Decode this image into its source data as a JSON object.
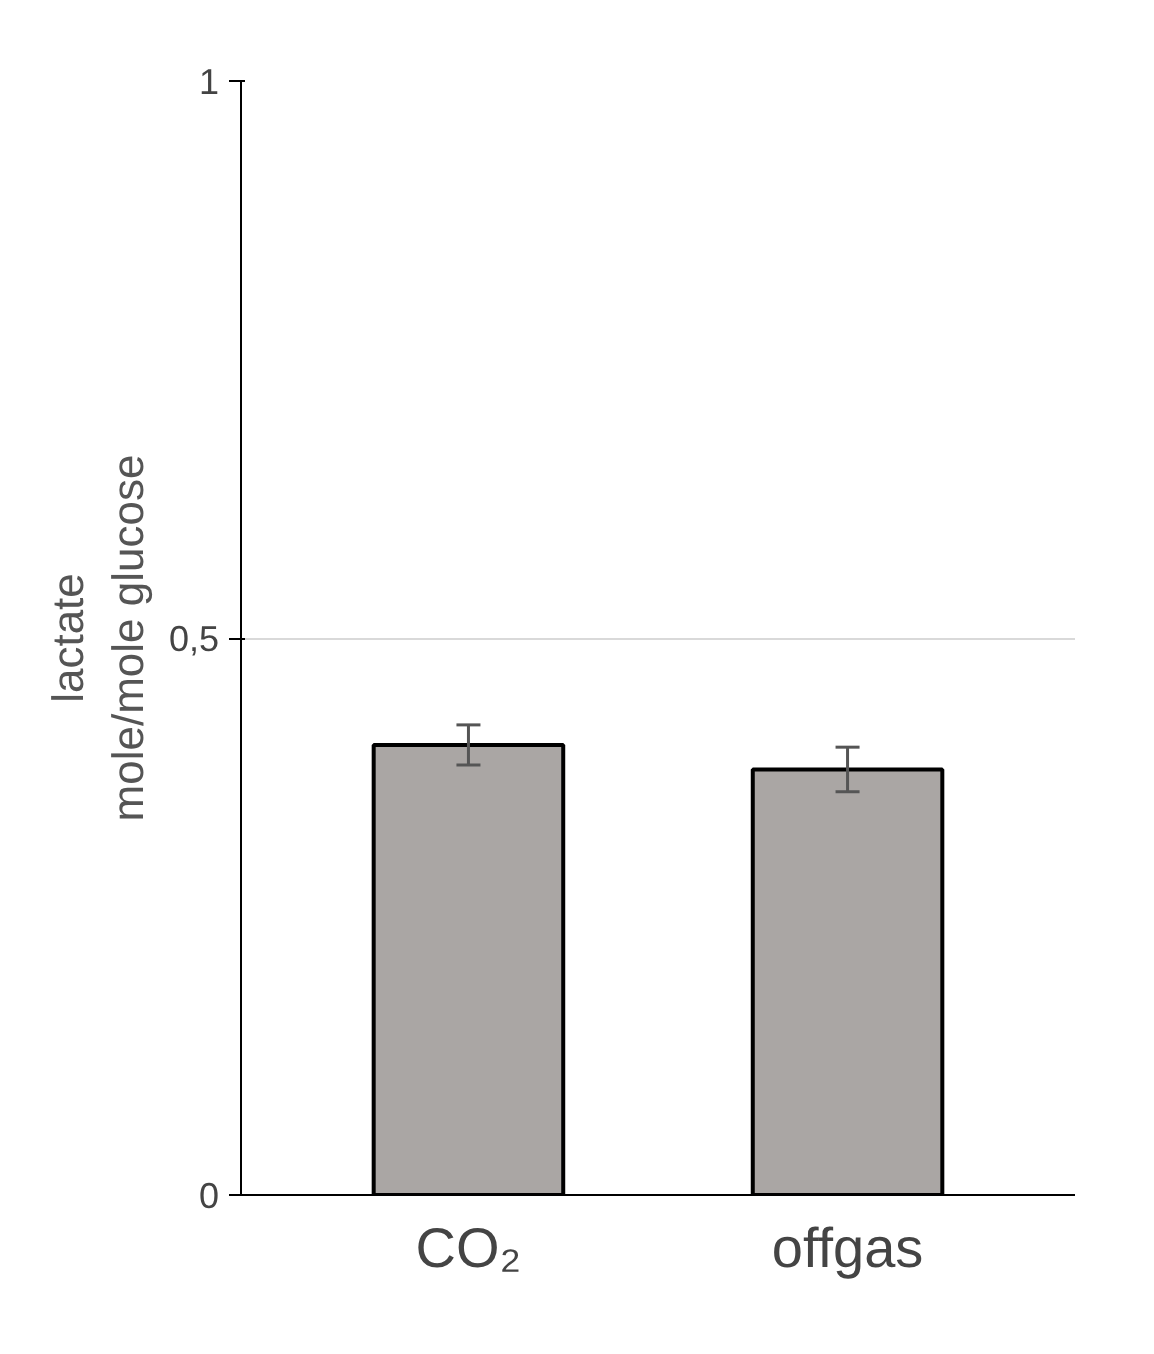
{
  "chart_data": {
    "type": "bar",
    "ylabel": "lactate\nmole/mole glucose",
    "categories": [
      "CO₂",
      "offgas"
    ],
    "values": [
      0.404,
      0.382
    ],
    "errors": [
      0.018,
      0.02
    ],
    "color": "#aaa6a4",
    "ylim": [
      0,
      1
    ],
    "yticks": [
      0,
      {
        "value": 0.5,
        "label": "0,5"
      },
      1
    ],
    "grid": "y"
  }
}
